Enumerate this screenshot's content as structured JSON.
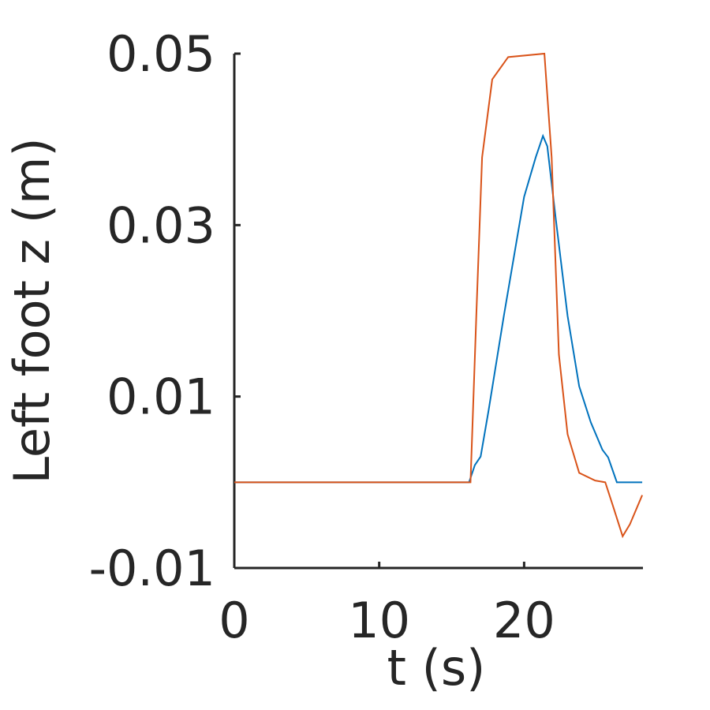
{
  "chart_data": {
    "type": "line",
    "xlabel": "t (s)",
    "ylabel": "Left foot z (m)",
    "xlim": [
      0,
      28.2
    ],
    "xticks": [
      0,
      10,
      20
    ],
    "ylim": [
      -0.01,
      0.05
    ],
    "yticks": [
      -0.01,
      0.01,
      0.03,
      0.05
    ],
    "series": [
      {
        "color": "#0072bd",
        "x": [
          0,
          16.2,
          16.6,
          17.0,
          17.55,
          18.6,
          20.0,
          20.8,
          21.3,
          21.6,
          22.2,
          23.0,
          23.8,
          24.6,
          25.4,
          25.8,
          26.4,
          28.15
        ],
        "values": [
          0,
          0,
          0.002,
          0.003,
          0.0084,
          0.0194,
          0.0333,
          0.0379,
          0.0404,
          0.0392,
          0.0305,
          0.0194,
          0.0112,
          0.007,
          0.0038,
          0.0029,
          0,
          0
        ]
      },
      {
        "color": "#d95319",
        "x": [
          0,
          16.3,
          16.7,
          17.1,
          17.8,
          18.9,
          21.4,
          21.9,
          22.4,
          23.0,
          23.8,
          24.9,
          25.6,
          26.1,
          26.8,
          27.3,
          28.15
        ],
        "values": [
          0,
          0,
          0.0194,
          0.0379,
          0.047,
          0.0496,
          0.05,
          0.0379,
          0.0149,
          0.0056,
          0.0011,
          0.0002,
          0,
          -0.0026,
          -0.0063,
          -0.0049,
          -0.0015
        ]
      }
    ]
  }
}
